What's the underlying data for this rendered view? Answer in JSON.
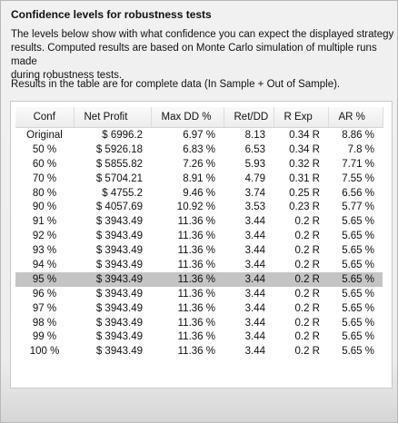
{
  "header": {
    "title": "Confidence levels for robustness tests"
  },
  "description": {
    "lines": [
      "The levels below show with what confidence you can expect the displayed strategy",
      "results. Computed results are based on Monte Carlo simulation of multiple runs made",
      "during robustness tests."
    ]
  },
  "note": "Results in the table are for complete data (In Sample + Out of Sample).",
  "table": {
    "columns": [
      "Conf",
      "Net Profit",
      "Max DD %",
      "Ret/DD",
      "R Exp",
      "AR %"
    ],
    "selected_row": 10,
    "rows": [
      [
        "Original",
        "$ 6996.2",
        "6.97 %",
        "8.13",
        "0.34 R",
        "8.86 %"
      ],
      [
        "50 %",
        "$ 5926.18",
        "6.83 %",
        "6.53",
        "0.34 R",
        "7.8 %"
      ],
      [
        "60 %",
        "$ 5855.82",
        "7.26 %",
        "5.93",
        "0.32 R",
        "7.71 %"
      ],
      [
        "70 %",
        "$ 5704.21",
        "8.91 %",
        "4.79",
        "0.31 R",
        "7.55 %"
      ],
      [
        "80 %",
        "$ 4755.2",
        "9.46 %",
        "3.74",
        "0.25 R",
        "6.56 %"
      ],
      [
        "90 %",
        "$ 4057.69",
        "10.92 %",
        "3.53",
        "0.23 R",
        "5.77 %"
      ],
      [
        "91 %",
        "$ 3943.49",
        "11.36 %",
        "3.44",
        "0.2 R",
        "5.65 %"
      ],
      [
        "92 %",
        "$ 3943.49",
        "11.36 %",
        "3.44",
        "0.2 R",
        "5.65 %"
      ],
      [
        "93 %",
        "$ 3943.49",
        "11.36 %",
        "3.44",
        "0.2 R",
        "5.65 %"
      ],
      [
        "94 %",
        "$ 3943.49",
        "11.36 %",
        "3.44",
        "0.2 R",
        "5.65 %"
      ],
      [
        "95 %",
        "$ 3943.49",
        "11.36 %",
        "3.44",
        "0.2 R",
        "5.65 %"
      ],
      [
        "96 %",
        "$ 3943.49",
        "11.36 %",
        "3.44",
        "0.2 R",
        "5.65 %"
      ],
      [
        "97 %",
        "$ 3943.49",
        "11.36 %",
        "3.44",
        "0.2 R",
        "5.65 %"
      ],
      [
        "98 %",
        "$ 3943.49",
        "11.36 %",
        "3.44",
        "0.2 R",
        "5.65 %"
      ],
      [
        "99 %",
        "$ 3943.49",
        "11.36 %",
        "3.44",
        "0.2 R",
        "5.65 %"
      ],
      [
        "100 %",
        "$ 3943.49",
        "11.36 %",
        "3.44",
        "0.2 R",
        "5.65 %"
      ]
    ]
  }
}
